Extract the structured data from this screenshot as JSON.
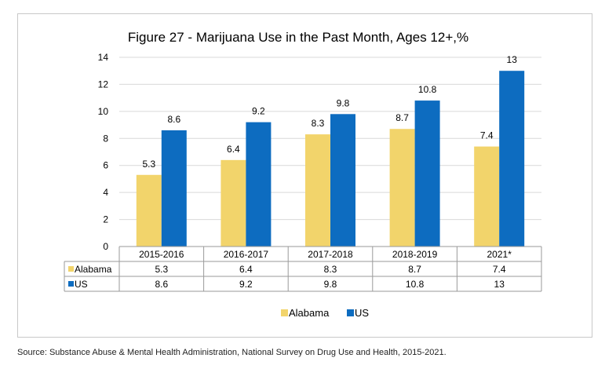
{
  "chart_data": {
    "type": "bar",
    "title": "Figure 27 - Marijuana Use in the Past Month, Ages 12+,%",
    "categories": [
      "2015-2016",
      "2016-2017",
      "2017-2018",
      "2018-2019",
      "2021*"
    ],
    "series": [
      {
        "name": "Alabama",
        "values": [
          5.3,
          6.4,
          8.3,
          8.7,
          7.4
        ],
        "color": "#f2d46b"
      },
      {
        "name": "US",
        "values": [
          8.6,
          9.2,
          9.8,
          10.8,
          13
        ],
        "color": "#0d6cc0"
      }
    ],
    "data_labels": [
      [
        "5.3",
        "6.4",
        "8.3",
        "8.7",
        "7.4"
      ],
      [
        "8.6",
        "9.2",
        "9.8",
        "10.8",
        "13"
      ]
    ],
    "ylim": [
      0,
      14
    ],
    "yticks": [
      0,
      2,
      4,
      6,
      8,
      10,
      12,
      14
    ],
    "grid": true,
    "legend": "bottom-center",
    "data_table": true
  },
  "source": "Source: Substance Abuse & Mental Health Administration, National Survey on Drug Use and Health, 2015-2021."
}
